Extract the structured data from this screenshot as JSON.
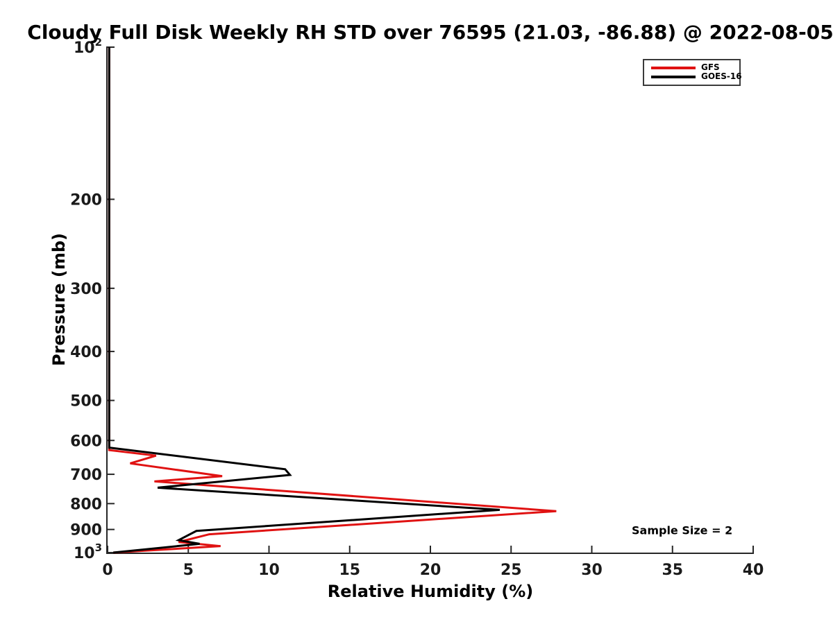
{
  "chart_data": {
    "type": "line",
    "title": "Cloudy Full Disk Weekly RH STD over 76595 (21.03, -86.88) @ 2022-08-05",
    "xlabel": "Relative Humidity (%)",
    "ylabel": "Pressure (mb)",
    "xlim": [
      0,
      40
    ],
    "ylim": [
      100,
      1000
    ],
    "y_scale": "log",
    "y_axis_direction": "inverted-pressure-top-100",
    "grid": "off",
    "legend_position": "upper-right",
    "annotation": "Sample Size = 2",
    "x_ticks": [
      0,
      5,
      10,
      15,
      20,
      25,
      30,
      35,
      40
    ],
    "y_ticks": [
      {
        "value": 100,
        "label": "10",
        "sup": "2"
      },
      {
        "value": 200,
        "label": "200"
      },
      {
        "value": 300,
        "label": "300"
      },
      {
        "value": 400,
        "label": "400"
      },
      {
        "value": 500,
        "label": "500"
      },
      {
        "value": 600,
        "label": "600"
      },
      {
        "value": 700,
        "label": "700"
      },
      {
        "value": 800,
        "label": "800"
      },
      {
        "value": 900,
        "label": "900"
      },
      {
        "value": 1000,
        "label": "10",
        "sup": "3"
      }
    ],
    "series": [
      {
        "name": "GFS",
        "color": "#e01212",
        "points_rh_pressure": [
          [
            0.1,
            100
          ],
          [
            0.1,
            627
          ],
          [
            3.0,
            643
          ],
          [
            1.4,
            666
          ],
          [
            7.1,
            706
          ],
          [
            2.9,
            723
          ],
          [
            27.8,
            828
          ],
          [
            6.3,
            920
          ],
          [
            4.4,
            953
          ],
          [
            7.0,
            971
          ],
          [
            0.35,
            1000
          ]
        ]
      },
      {
        "name": "GOES-16",
        "color": "#000000",
        "points_rh_pressure": [
          [
            0.1,
            100
          ],
          [
            0.1,
            620
          ],
          [
            11.0,
            684
          ],
          [
            11.3,
            702
          ],
          [
            3.1,
            744
          ],
          [
            24.3,
            823
          ],
          [
            5.5,
            906
          ],
          [
            4.4,
            945
          ],
          [
            5.7,
            961
          ],
          [
            0.35,
            1000
          ]
        ]
      }
    ],
    "axis_color": "#262626",
    "tick_label_color": "#1a1a1a"
  }
}
